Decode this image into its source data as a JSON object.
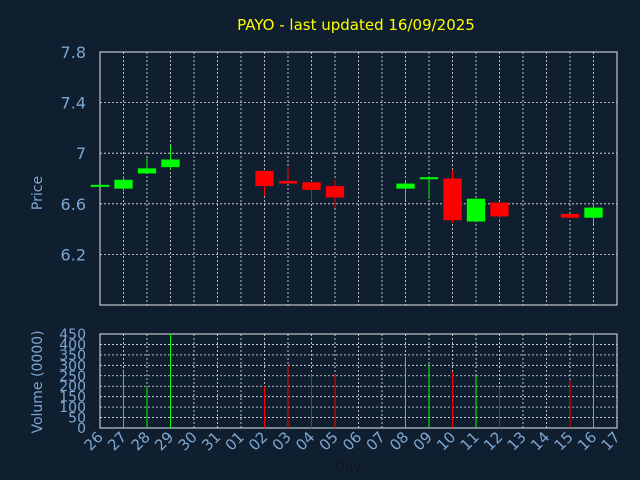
{
  "chart_data": {
    "type": "candlestick",
    "title": "PAYO - last updated 16/09/2025",
    "price_ylabel": "Price",
    "volume_ylabel": "Volume (0000)",
    "xlabel": "Day",
    "price_ylim": [
      5.8,
      7.8
    ],
    "price_yticks": [
      "6.2",
      "6.6",
      "7",
      "7.4",
      "7.8"
    ],
    "volume_ylim": [
      0,
      450
    ],
    "volume_yticks": [
      "0",
      "50",
      "100",
      "150",
      "200",
      "250",
      "300",
      "350",
      "400",
      "450"
    ],
    "day_labels": [
      "26",
      "27",
      "28",
      "29",
      "30",
      "31",
      "01",
      "02",
      "03",
      "04",
      "05",
      "06",
      "07",
      "08",
      "09",
      "10",
      "11",
      "12",
      "13",
      "14",
      "15",
      "16",
      "17"
    ],
    "colors": {
      "up": "#00ff00",
      "down": "#ff0000",
      "grid": "#e6e6e6",
      "text": "#7ea6d0",
      "title": "#ffff00",
      "background": "#0f1f30"
    },
    "candles": [
      {
        "day": "26",
        "open": 6.75,
        "close": 6.75,
        "high": 6.75,
        "low": 6.75,
        "volume": 0
      },
      {
        "day": "27",
        "open": 6.72,
        "close": 6.79,
        "high": 6.82,
        "low": 6.7,
        "volume": 280
      },
      {
        "day": "28",
        "open": 6.84,
        "close": 6.88,
        "high": 6.96,
        "low": 6.84,
        "volume": 200
      },
      {
        "day": "29",
        "open": 6.89,
        "close": 6.95,
        "high": 7.06,
        "low": 6.87,
        "volume": 450
      },
      {
        "day": "02",
        "open": 6.86,
        "close": 6.74,
        "high": 6.86,
        "low": 6.66,
        "volume": 200
      },
      {
        "day": "03",
        "open": 6.78,
        "close": 6.76,
        "high": 6.89,
        "low": 6.76,
        "volume": 300
      },
      {
        "day": "04",
        "open": 6.77,
        "close": 6.71,
        "high": 6.78,
        "low": 6.62,
        "volume": 255
      },
      {
        "day": "05",
        "open": 6.74,
        "close": 6.65,
        "high": 6.79,
        "low": 6.57,
        "volume": 255
      },
      {
        "day": "08",
        "open": 6.72,
        "close": 6.76,
        "high": 6.79,
        "low": 6.63,
        "volume": 340
      },
      {
        "day": "09",
        "open": 6.8,
        "close": 6.81,
        "high": 6.82,
        "low": 6.64,
        "volume": 305
      },
      {
        "day": "10",
        "open": 6.8,
        "close": 6.47,
        "high": 6.87,
        "low": 6.45,
        "volume": 270
      },
      {
        "day": "11",
        "open": 6.46,
        "close": 6.64,
        "high": 6.64,
        "low": 6.46,
        "volume": 250
      },
      {
        "day": "12",
        "open": 6.61,
        "close": 6.5,
        "high": 6.61,
        "low": 6.47,
        "volume": 195
      },
      {
        "day": "15",
        "open": 6.52,
        "close": 6.49,
        "high": 6.52,
        "low": 6.49,
        "volume": 230
      },
      {
        "day": "16",
        "open": 6.49,
        "close": 6.57,
        "high": 6.6,
        "low": 6.44,
        "volume": 450
      }
    ]
  }
}
